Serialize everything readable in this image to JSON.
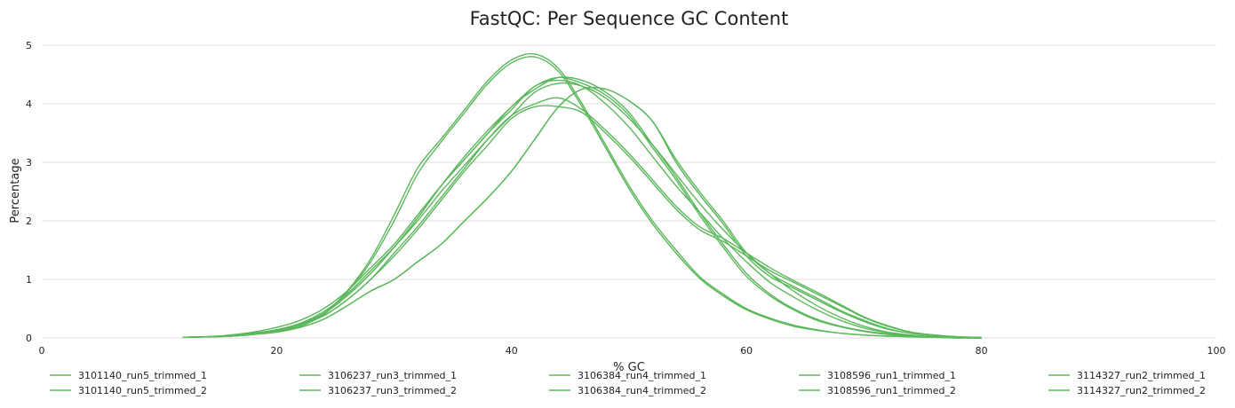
{
  "chart_data": {
    "type": "line",
    "title": "FastQC: Per Sequence GC Content",
    "xlabel": "% GC",
    "ylabel": "Percentage",
    "xlim": [
      0,
      100
    ],
    "ylim": [
      0,
      5
    ],
    "x_ticks": [
      "0",
      "20",
      "40",
      "60",
      "80",
      "100"
    ],
    "y_ticks": [
      "0",
      "1",
      "2",
      "3",
      "4",
      "5"
    ],
    "grid": "horizontal",
    "legend_position": "bottom",
    "line_color": "#5cb85c",
    "x": [
      12,
      14,
      16,
      18,
      20,
      22,
      24,
      26,
      28,
      30,
      32,
      34,
      36,
      38,
      40,
      42,
      44,
      46,
      48,
      50,
      52,
      54,
      56,
      58,
      60,
      62,
      64,
      66,
      68,
      70,
      72,
      74,
      76,
      78,
      80
    ],
    "series": [
      {
        "name": "3101140_run5_trimmed_1",
        "values": [
          0.01,
          0.02,
          0.04,
          0.08,
          0.14,
          0.25,
          0.45,
          0.75,
          1.15,
          1.55,
          2.0,
          2.5,
          2.95,
          3.4,
          3.8,
          4.2,
          4.35,
          4.3,
          4.1,
          3.75,
          3.3,
          2.8,
          2.3,
          1.85,
          1.45,
          1.1,
          0.8,
          0.55,
          0.35,
          0.2,
          0.1,
          0.05,
          0.02,
          0.01,
          0.0
        ]
      },
      {
        "name": "3101140_run5_trimmed_2",
        "values": [
          0.01,
          0.02,
          0.05,
          0.1,
          0.18,
          0.3,
          0.5,
          0.8,
          1.2,
          1.6,
          2.1,
          2.6,
          3.05,
          3.5,
          3.9,
          4.3,
          4.4,
          4.3,
          4.0,
          3.6,
          3.1,
          2.6,
          2.15,
          1.7,
          1.3,
          0.95,
          0.7,
          0.48,
          0.3,
          0.17,
          0.09,
          0.04,
          0.02,
          0.01,
          0.0
        ]
      },
      {
        "name": "3106237_run3_trimmed_1",
        "values": [
          0.01,
          0.02,
          0.03,
          0.06,
          0.12,
          0.22,
          0.42,
          0.8,
          1.35,
          2.1,
          2.9,
          3.4,
          3.9,
          4.4,
          4.75,
          4.85,
          4.6,
          4.0,
          3.3,
          2.6,
          2.0,
          1.5,
          1.05,
          0.75,
          0.5,
          0.34,
          0.22,
          0.14,
          0.08,
          0.05,
          0.03,
          0.02,
          0.01,
          0.0,
          0.0
        ]
      },
      {
        "name": "3106237_run3_trimmed_2",
        "values": [
          0.01,
          0.02,
          0.03,
          0.06,
          0.12,
          0.2,
          0.4,
          0.78,
          1.3,
          2.0,
          2.8,
          3.35,
          3.85,
          4.35,
          4.7,
          4.8,
          4.55,
          3.95,
          3.25,
          2.55,
          1.95,
          1.45,
          1.02,
          0.72,
          0.48,
          0.32,
          0.2,
          0.13,
          0.08,
          0.05,
          0.03,
          0.02,
          0.01,
          0.0,
          0.0
        ]
      },
      {
        "name": "3106384_run4_trimmed_1",
        "values": [
          0.01,
          0.02,
          0.04,
          0.08,
          0.14,
          0.24,
          0.42,
          0.72,
          1.1,
          1.55,
          2.05,
          2.6,
          3.05,
          3.5,
          3.95,
          4.25,
          4.45,
          4.4,
          4.2,
          3.85,
          3.3,
          2.75,
          2.15,
          1.6,
          1.1,
          0.75,
          0.5,
          0.32,
          0.2,
          0.12,
          0.07,
          0.04,
          0.02,
          0.01,
          0.0
        ]
      },
      {
        "name": "3106384_run4_trimmed_2",
        "values": [
          0.01,
          0.02,
          0.04,
          0.08,
          0.14,
          0.24,
          0.42,
          0.72,
          1.1,
          1.55,
          2.05,
          2.6,
          3.1,
          3.55,
          3.95,
          4.3,
          4.45,
          4.35,
          4.15,
          3.8,
          3.25,
          2.7,
          2.1,
          1.55,
          1.05,
          0.72,
          0.48,
          0.3,
          0.19,
          0.11,
          0.06,
          0.03,
          0.02,
          0.01,
          0.0
        ]
      },
      {
        "name": "3108596_run1_trimmed_1",
        "values": [
          0.01,
          0.02,
          0.03,
          0.06,
          0.1,
          0.18,
          0.32,
          0.55,
          0.8,
          1.0,
          1.3,
          1.6,
          2.0,
          2.4,
          2.85,
          3.4,
          3.95,
          4.25,
          4.25,
          4.05,
          3.7,
          3.0,
          2.45,
          1.95,
          1.4,
          1.05,
          0.85,
          0.65,
          0.45,
          0.28,
          0.15,
          0.08,
          0.04,
          0.01,
          0.0
        ]
      },
      {
        "name": "3108596_run1_trimmed_2",
        "values": [
          0.01,
          0.02,
          0.03,
          0.06,
          0.1,
          0.18,
          0.32,
          0.55,
          0.8,
          1.0,
          1.3,
          1.6,
          2.0,
          2.4,
          2.85,
          3.4,
          3.95,
          4.25,
          4.25,
          4.05,
          3.7,
          3.05,
          2.5,
          2.0,
          1.45,
          1.1,
          0.88,
          0.68,
          0.47,
          0.3,
          0.16,
          0.08,
          0.04,
          0.01,
          0.0
        ]
      },
      {
        "name": "3114327_run2_trimmed_1",
        "values": [
          0.01,
          0.02,
          0.04,
          0.08,
          0.13,
          0.22,
          0.38,
          0.65,
          1.0,
          1.4,
          1.85,
          2.35,
          2.85,
          3.3,
          3.75,
          3.95,
          3.95,
          3.85,
          3.5,
          3.1,
          2.65,
          2.2,
          1.85,
          1.65,
          1.4,
          1.15,
          0.95,
          0.75,
          0.55,
          0.35,
          0.2,
          0.1,
          0.05,
          0.02,
          0.01
        ]
      },
      {
        "name": "3114327_run2_trimmed_2",
        "values": [
          0.01,
          0.02,
          0.04,
          0.08,
          0.13,
          0.22,
          0.38,
          0.65,
          1.0,
          1.45,
          1.9,
          2.4,
          2.9,
          3.4,
          3.8,
          4.0,
          4.1,
          3.9,
          3.55,
          3.15,
          2.7,
          2.25,
          1.9,
          1.7,
          1.45,
          1.2,
          0.98,
          0.78,
          0.57,
          0.36,
          0.21,
          0.1,
          0.05,
          0.02,
          0.01
        ]
      }
    ]
  }
}
